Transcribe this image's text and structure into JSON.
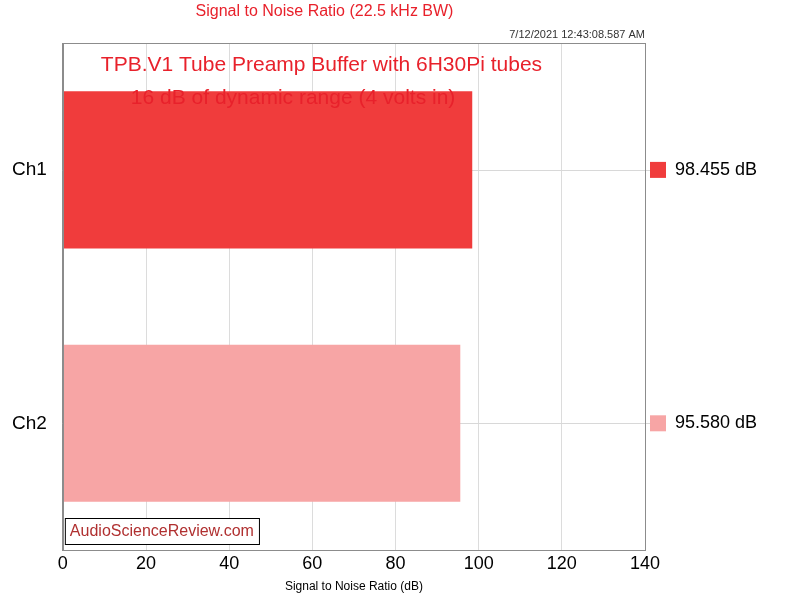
{
  "chart_data": {
    "type": "bar",
    "orientation": "horizontal",
    "title": "Signal to Noise Ratio (22.5 kHz BW)",
    "annotations": [
      "7/12/2021 12:43:08.587 AM",
      "TPB.V1 Tube Preamp Buffer with 6H30Pi tubes",
      "16 dB of dynamic range (4 volts in)",
      "AudioScienceReview.com"
    ],
    "xlabel": "Signal to Noise Ratio (dB)",
    "categories": [
      "Ch1",
      "Ch2"
    ],
    "values": [
      98.455,
      95.58
    ],
    "value_labels": [
      "98.455 dB",
      "95.580 dB"
    ],
    "colors": [
      "#f03c3c",
      "#f7a5a5"
    ],
    "xlim": [
      0,
      140
    ],
    "xticks": [
      0,
      20,
      40,
      60,
      80,
      100,
      120,
      140
    ],
    "grid": true,
    "data_labels": true
  }
}
